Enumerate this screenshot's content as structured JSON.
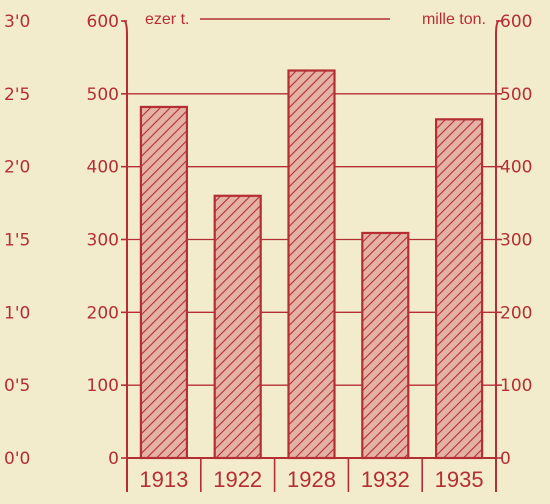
{
  "chart_data": {
    "type": "bar",
    "categories": [
      "1913",
      "1922",
      "1928",
      "1932",
      "1935"
    ],
    "values": [
      482,
      360,
      532,
      309,
      465
    ],
    "ylim": [
      0,
      600
    ],
    "left_unit_label": "ezer t.",
    "right_unit_label": "mille ton.",
    "axis_left_outer": {
      "range": [
        0,
        3.0
      ],
      "ticks": [
        "0'0",
        "0'5",
        "1'0",
        "1'5",
        "2'0",
        "2'5",
        "3'0"
      ]
    },
    "axis_left_inner": {
      "ticks": [
        "0",
        "100",
        "200",
        "300",
        "400",
        "500",
        "600"
      ]
    },
    "axis_right": {
      "ticks": [
        "0",
        "100",
        "200",
        "300",
        "400",
        "500",
        "600"
      ]
    },
    "grid": true,
    "bar_fill": "diagonal-hatch",
    "colors": {
      "ink": "#b52e33",
      "background": "#f2eccd",
      "bar_fill": "#dfa99a"
    }
  }
}
